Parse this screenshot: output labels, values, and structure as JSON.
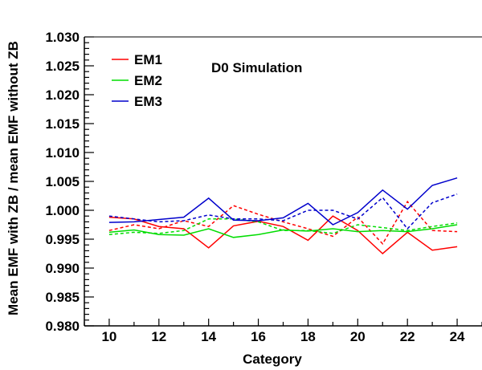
{
  "chart_data": {
    "type": "line",
    "annotation": "D0 Simulation",
    "xlabel": "Category",
    "ylabel": "Mean EMF with ZB / mean EMF without ZB",
    "xlim": [
      9,
      25
    ],
    "ylim": [
      0.98,
      1.03
    ],
    "xticks": [
      10,
      12,
      14,
      16,
      18,
      20,
      22,
      24
    ],
    "yticks": [
      0.98,
      0.985,
      0.99,
      0.995,
      1.0,
      1.005,
      1.01,
      1.015,
      1.02,
      1.025,
      1.03
    ],
    "ytick_labels": [
      "0.980",
      "0.985",
      "0.990",
      "0.995",
      "1.000",
      "1.005",
      "1.010",
      "1.015",
      "1.020",
      "1.025",
      "1.030"
    ],
    "legend_position": "top-left",
    "x": [
      10,
      11,
      12,
      13,
      14,
      15,
      16,
      17,
      18,
      19,
      20,
      21,
      22,
      23,
      24
    ],
    "series": [
      {
        "name": "EM1",
        "style": "solid",
        "color": "#ff0000",
        "values": [
          0.9988,
          0.9985,
          0.9972,
          0.9968,
          0.9935,
          0.9973,
          0.9981,
          0.9972,
          0.9948,
          0.999,
          0.9965,
          0.9925,
          0.9962,
          0.9931,
          0.9937
        ]
      },
      {
        "name": "",
        "style": "dashed",
        "color": "#ff0000",
        "values": [
          0.9965,
          0.9975,
          0.9968,
          0.9982,
          0.9972,
          1.0008,
          0.9993,
          0.998,
          0.9968,
          0.9955,
          0.9988,
          0.9942,
          1.0015,
          0.9965,
          0.9963
        ]
      },
      {
        "name": "EM2",
        "style": "solid",
        "color": "#00dd00",
        "values": [
          0.9962,
          0.9966,
          0.9958,
          0.9957,
          0.9968,
          0.9953,
          0.9958,
          0.9966,
          0.9964,
          0.9968,
          0.9963,
          0.9965,
          0.9963,
          0.9968,
          0.9975
        ]
      },
      {
        "name": "",
        "style": "dashed",
        "color": "#00dd00",
        "values": [
          0.9958,
          0.9962,
          0.996,
          0.9965,
          0.9985,
          0.9985,
          0.998,
          0.9965,
          0.9965,
          0.996,
          0.9975,
          0.997,
          0.9965,
          0.9972,
          0.9978
        ]
      },
      {
        "name": "EM3",
        "style": "solid",
        "color": "#0000cc",
        "values": [
          0.9979,
          0.998,
          0.9984,
          0.9988,
          1.0021,
          0.9983,
          0.9982,
          0.9987,
          1.0012,
          0.9975,
          0.9996,
          1.0035,
          1.0002,
          1.0043,
          1.0056
        ]
      },
      {
        "name": "",
        "style": "dashed",
        "color": "#0000cc",
        "values": [
          0.999,
          0.9985,
          0.998,
          0.9982,
          0.9992,
          0.9985,
          0.9985,
          0.9982,
          1.0,
          1.0,
          0.9985,
          1.0022,
          0.9968,
          1.0013,
          1.0028
        ]
      }
    ]
  }
}
